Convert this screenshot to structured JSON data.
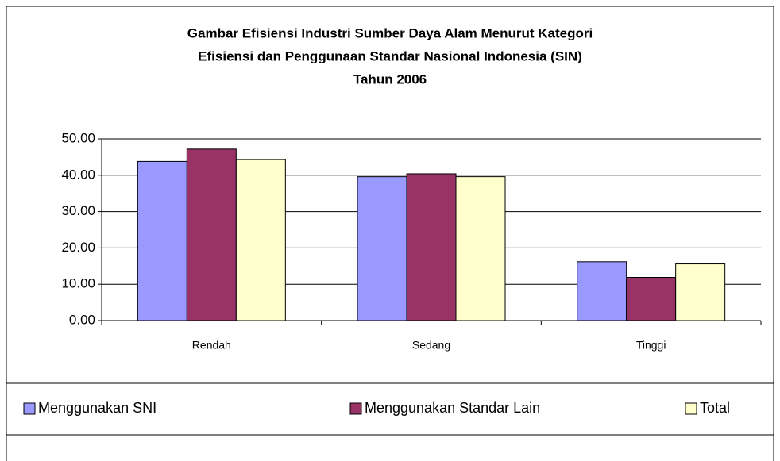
{
  "chart_data": {
    "type": "bar",
    "title": [
      "Gambar    Efisiensi Industri Sumber Daya Alam Menurut Kategori",
      "Efisiensi dan Penggunaan Standar Nasional Indonesia (SIN)",
      "Tahun 2006"
    ],
    "categories": [
      "Rendah",
      "Sedang",
      "Tinggi"
    ],
    "series": [
      {
        "name": "Menggunakan SNI",
        "color": "#9999ff",
        "values": [
          43.8,
          39.6,
          16.2
        ]
      },
      {
        "name": "Menggunakan Standar Lain",
        "color": "#993366",
        "values": [
          47.2,
          40.4,
          11.9
        ]
      },
      {
        "name": "Total",
        "color": "#ffffcc",
        "values": [
          44.3,
          39.6,
          15.6
        ]
      }
    ],
    "ylim": [
      0,
      50
    ],
    "yticks": [
      {
        "value": 0,
        "label": "0.00"
      },
      {
        "value": 10,
        "label": "10.00"
      },
      {
        "value": 20,
        "label": "20.00"
      },
      {
        "value": 30,
        "label": "30.00"
      },
      {
        "value": 40,
        "label": "40.00"
      },
      {
        "value": 50,
        "label": "50.00"
      }
    ],
    "grid": true,
    "legend": "bottom"
  }
}
